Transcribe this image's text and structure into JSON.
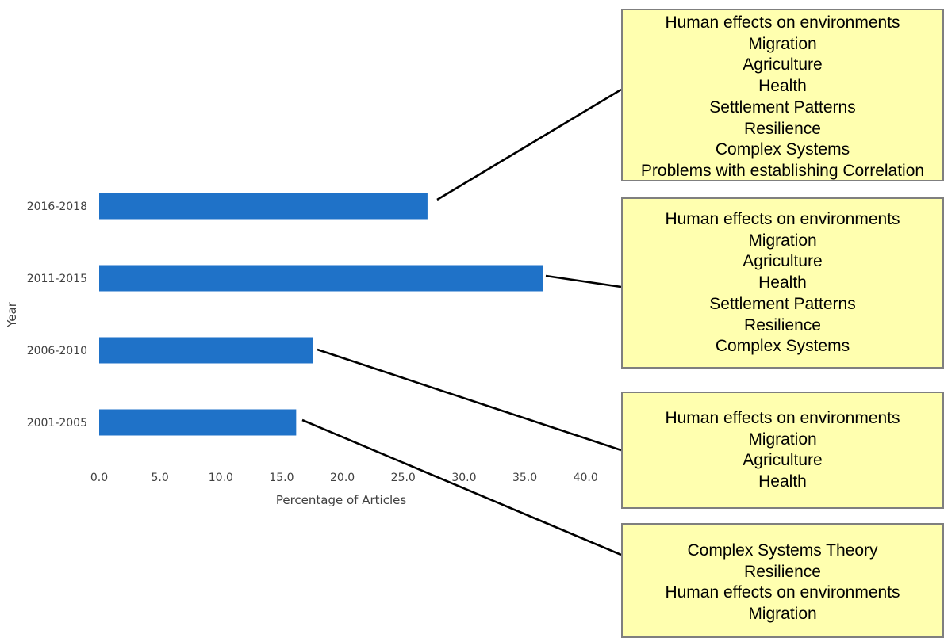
{
  "chart_data": {
    "type": "bar",
    "orientation": "horizontal",
    "xlabel": "Percentage of Articles",
    "ylabel": "Year",
    "categories": [
      "2001-2005",
      "2006-2010",
      "2011-2015",
      "2016-2018"
    ],
    "values": [
      16.2,
      17.6,
      36.5,
      27.0
    ],
    "xlim": [
      0,
      40
    ],
    "xticks": [
      "0.0",
      "5.0",
      "10.0",
      "15.0",
      "20.0",
      "25.0",
      "30.0",
      "35.0",
      "40.0"
    ],
    "grid": false,
    "bar_color": "#1f72c8",
    "annotations": [
      {
        "category": "2016-2018",
        "topics": [
          "Human effects on environments",
          "Migration",
          "Agriculture",
          "Health",
          "Settlement Patterns",
          "Resilience",
          "Complex Systems",
          "Problems with establishing Correlation"
        ]
      },
      {
        "category": "2011-2015",
        "topics": [
          "Human effects on environments",
          "Migration",
          "Agriculture",
          "Health",
          "Settlement Patterns",
          "Resilience",
          "Complex Systems"
        ]
      },
      {
        "category": "2006-2010",
        "topics": [
          "Human effects on environments",
          "Migration",
          "Agriculture",
          "Health"
        ]
      },
      {
        "category": "2001-2005",
        "topics": [
          "Complex Systems Theory",
          "Resilience",
          "Human effects on environments",
          "Migration"
        ]
      }
    ],
    "box_color": "#ffffaf",
    "box_border_color": "#7f7f7f"
  }
}
